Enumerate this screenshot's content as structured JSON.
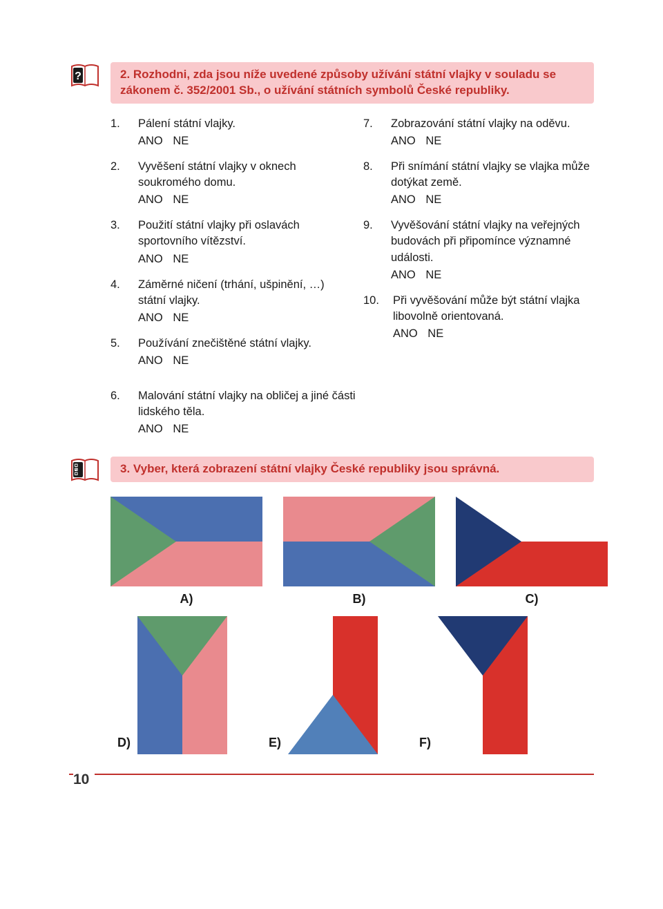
{
  "colors": {
    "accent": "#c0302c",
    "header_bg": "#f9c9cc",
    "text": "#1a1a1a",
    "flag_blue": "#4b6fb0",
    "flag_pink": "#e98a8e",
    "flag_green": "#5f9b6c",
    "flag_white": "#ffffff",
    "flag_red": "#d8312b",
    "flag_blue2": "#5180b9",
    "flag_dark": "#213a73"
  },
  "task2": {
    "title": "2. Rozhodni, zda jsou níže uvedené způsoby užívání státní vlajky v souladu se zákonem č. 352/2001 Sb., o užívání státních symbolů České republiky.",
    "yes": "ANO",
    "no": "NE",
    "items_left": [
      {
        "num": "1.",
        "text": "Pálení státní vlajky."
      },
      {
        "num": "2.",
        "text": "Vyvěšení státní vlajky v oknech soukromého domu."
      },
      {
        "num": "3.",
        "text": "Použití státní vlajky při oslavách sportovního vítězství."
      },
      {
        "num": "4.",
        "text": "Záměrné ničení (trhání, ušpinění, …) státní vlajky."
      },
      {
        "num": "5.",
        "text": "Používání znečištěné státní vlajky."
      }
    ],
    "item6": {
      "num": "6.",
      "text": "Malování státní vlajky na obličej a jiné části lidského těla."
    },
    "items_right": [
      {
        "num": "7.",
        "text": "Zobrazování státní vlajky na oděvu."
      },
      {
        "num": "8.",
        "text": "Při snímání státní vlajky se vlajka může dotýkat země."
      },
      {
        "num": "9.",
        "text": "Vyvěšování státní vlajky na veřejných budovách při připomínce významné události."
      },
      {
        "num": "10.",
        "text": "Při vyvěšování může být státní vlajka libovolně orientovaná."
      }
    ]
  },
  "task3": {
    "title": "3. Vyber, která zobrazení státní vlajky České republiky jsou správná.",
    "labels": {
      "a": "A)",
      "b": "B)",
      "c": "C)",
      "d": "D)",
      "e": "E)",
      "f": "F)"
    }
  },
  "page_number": "10"
}
